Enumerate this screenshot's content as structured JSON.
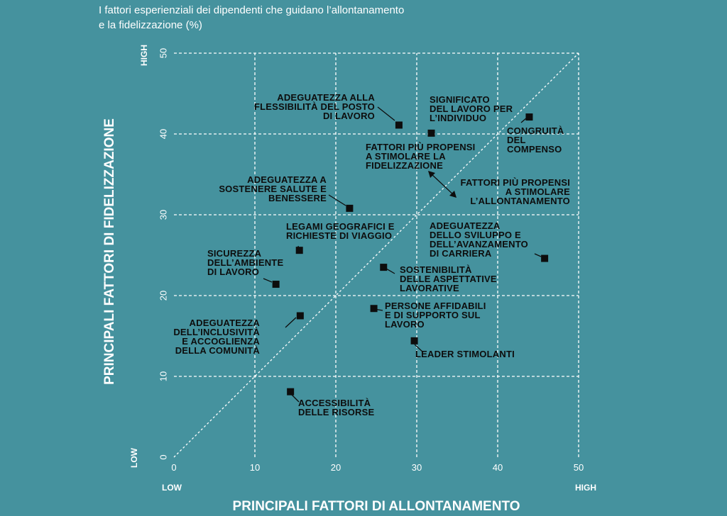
{
  "title": {
    "line1": "I fattori esperienziali dei dipendenti che guidano l’allontanamento",
    "line2": "e la fidelizzazione (%)"
  },
  "chart_data": {
    "type": "scatter",
    "xlabel": "PRINCIPALI FATTORI DI ALLONTANAMENTO",
    "ylabel": "PRINCIPALI FATTORI DI FIDELIZZAZIONE",
    "x_low": "LOW",
    "x_high": "HIGH",
    "y_low": "LOW",
    "y_high": "HIGH",
    "xlim": [
      0,
      50
    ],
    "ylim": [
      0,
      50
    ],
    "xticks": [
      0,
      10,
      20,
      30,
      40,
      50
    ],
    "yticks": [
      0,
      10,
      20,
      30,
      40,
      50
    ],
    "grid": true,
    "diagonal": true,
    "zone_labels": [
      {
        "lines": [
          "FATTORI PIÙ PROPENSI",
          "A STIMOLARE LA",
          "FIDELIZZAZIONE"
        ]
      },
      {
        "lines": [
          "FATTORI PIÙ PROPENSI",
          "A STIMOLARE",
          "L’ALLONTANAMENTO"
        ]
      }
    ],
    "points": [
      {
        "x": 27.8,
        "y": 41.1,
        "lines": [
          "ADEGUATEZZA ALLA",
          "FLESSIBILITÀ DEL POSTO",
          "DI LAVORO"
        ]
      },
      {
        "x": 31.8,
        "y": 40.1,
        "lines": [
          "SIGNIFICATO",
          "DEL LAVORO PER",
          "L’INDIVIDUO"
        ]
      },
      {
        "x": 43.9,
        "y": 42.1,
        "lines": [
          "CONGRUITÀ",
          "DEL",
          "COMPENSO"
        ]
      },
      {
        "x": 21.7,
        "y": 30.8,
        "lines": [
          "ADEGUATEZZA A",
          "SOSTENERE SALUTE E",
          "BENESSERE"
        ]
      },
      {
        "x": 15.5,
        "y": 25.6,
        "lines": [
          "LEGAMI GEOGRAFICI E",
          "RICHIESTE DI VIAGGIO"
        ]
      },
      {
        "x": 12.6,
        "y": 21.4,
        "lines": [
          "SICUREZZA",
          "DELL’AMBIENTE",
          "DI LAVORO"
        ]
      },
      {
        "x": 45.8,
        "y": 24.6,
        "lines": [
          "ADEGUATEZZA",
          "DELLO SVILUPPO E",
          "DELL’AVANZAMENTO",
          "DI CARRIERA"
        ]
      },
      {
        "x": 25.9,
        "y": 23.5,
        "lines": [
          "SOSTENIBILITÀ",
          "DELLE ASPETTATIVE",
          "LAVORATIVE"
        ]
      },
      {
        "x": 15.6,
        "y": 17.5,
        "lines": [
          "ADEGUATEZZA",
          "DELL’INCLUSIVITÀ",
          "E ACCOGLIENZA",
          "DELLA COMUNITÀ"
        ]
      },
      {
        "x": 24.7,
        "y": 18.4,
        "lines": [
          "PERSONE AFFIDABILI",
          "E DI SUPPORTO SUL",
          "LAVORO"
        ]
      },
      {
        "x": 29.7,
        "y": 14.4,
        "lines": [
          "LEADER STIMOLANTI"
        ]
      },
      {
        "x": 14.4,
        "y": 8.1,
        "lines": [
          "ACCESSIBILITÀ",
          "DELLE RISORSE"
        ]
      }
    ]
  }
}
